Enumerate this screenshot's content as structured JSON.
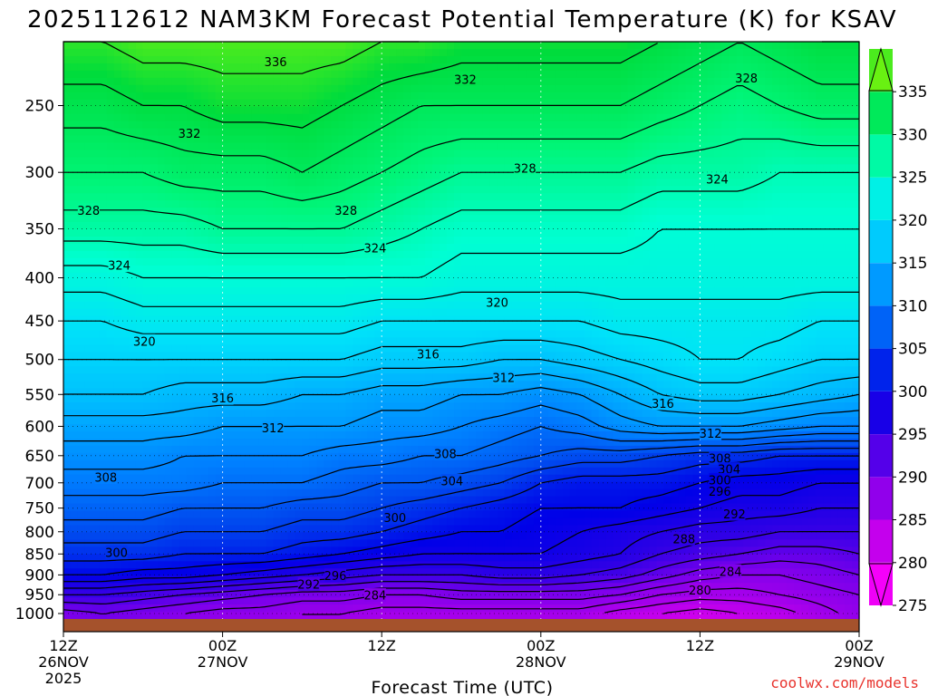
{
  "chart_data": {
    "type": "heatmap",
    "title": "2025112612 NAM3KM Forecast Potential Temperature (K) for KSAV",
    "xlabel": "Forecast Time (UTC)",
    "ylabel": "",
    "variable": "Potential Temperature (K)",
    "x_ticks": [
      {
        "hour": 0,
        "line1": "12Z",
        "line2": "26NOV",
        "line3": "2025"
      },
      {
        "hour": 12,
        "line1": "00Z",
        "line2": "27NOV",
        "line3": ""
      },
      {
        "hour": 24,
        "line1": "12Z",
        "line2": "",
        "line3": ""
      },
      {
        "hour": 36,
        "line1": "00Z",
        "line2": "28NOV",
        "line3": ""
      },
      {
        "hour": 48,
        "line1": "12Z",
        "line2": "",
        "line3": ""
      },
      {
        "hour": 60,
        "line1": "00Z",
        "line2": "29NOV",
        "line3": ""
      }
    ],
    "xlim": [
      0,
      60
    ],
    "y_ticks": [
      250,
      300,
      350,
      400,
      450,
      500,
      550,
      600,
      650,
      700,
      750,
      800,
      850,
      900,
      950,
      1000
    ],
    "ylim": [
      1015,
      210
    ],
    "colorbar": {
      "ticks": [
        335,
        330,
        325,
        320,
        315,
        310,
        305,
        300,
        295,
        290,
        285,
        280,
        275
      ],
      "min": 272.5,
      "max": 337.5
    },
    "times": [
      0,
      3,
      6,
      9,
      12,
      15,
      18,
      21,
      24,
      27,
      30,
      33,
      36,
      39,
      42,
      45,
      48,
      51,
      54,
      57,
      60
    ],
    "levels": [
      {
        "p": 1000,
        "theta": [
          287,
          288,
          287,
          286,
          285,
          285,
          284,
          284,
          283,
          283,
          283,
          283,
          283,
          283,
          281,
          280,
          279,
          280,
          281,
          283,
          285
        ]
      },
      {
        "p": 950,
        "theta": [
          292,
          292,
          291,
          290,
          289,
          288,
          287,
          287,
          286,
          286,
          287,
          287,
          287,
          287,
          286,
          284,
          283,
          283,
          284,
          285,
          286
        ]
      },
      {
        "p": 900,
        "theta": [
          298,
          298,
          297,
          297,
          296,
          295,
          294,
          293,
          292,
          292,
          292,
          293,
          293,
          292,
          291,
          289,
          287,
          286,
          286,
          287,
          288
        ]
      },
      {
        "p": 850,
        "theta": [
          301,
          301,
          301,
          300,
          300,
          300,
          299,
          298,
          297,
          296,
          296,
          296,
          296,
          295,
          294,
          292,
          291,
          290,
          289,
          289,
          290
        ]
      },
      {
        "p": 800,
        "theta": [
          303,
          303,
          303,
          302,
          302,
          302,
          301,
          301,
          300,
          299,
          298,
          298,
          297,
          296,
          295,
          294,
          293,
          293,
          292,
          292,
          292
        ]
      },
      {
        "p": 750,
        "theta": [
          305,
          305,
          305,
          304,
          304,
          304,
          303,
          303,
          302,
          301,
          300,
          299,
          298,
          298,
          298,
          297,
          296,
          295,
          295,
          294,
          294
        ]
      },
      {
        "p": 700,
        "theta": [
          307,
          307,
          307,
          307,
          306,
          306,
          306,
          305,
          304,
          304,
          303,
          302,
          300,
          299,
          299,
          299,
          298,
          297,
          297,
          296,
          296
        ]
      },
      {
        "p": 650,
        "theta": [
          309,
          309,
          309,
          308,
          308,
          308,
          308,
          307,
          307,
          306,
          306,
          305,
          304,
          303,
          303,
          302,
          301,
          301,
          300,
          300,
          300
        ]
      },
      {
        "p": 600,
        "theta": [
          311,
          311,
          311,
          311,
          310,
          310,
          310,
          310,
          309,
          309,
          308,
          307,
          306,
          307,
          309,
          310,
          310,
          310,
          309,
          308,
          308
        ]
      },
      {
        "p": 550,
        "theta": [
          314,
          314,
          314,
          313,
          313,
          313,
          312,
          312,
          311,
          311,
          310,
          310,
          309,
          310,
          312,
          314,
          315,
          315,
          314,
          313,
          312
        ]
      },
      {
        "p": 500,
        "theta": [
          316,
          316,
          316,
          316,
          316,
          316,
          316,
          316,
          315,
          315,
          315,
          314,
          314,
          315,
          316,
          317,
          318,
          318,
          317,
          316,
          316
        ]
      },
      {
        "p": 450,
        "theta": [
          318,
          318,
          319,
          319,
          319,
          319,
          319,
          319,
          318,
          318,
          318,
          318,
          318,
          318,
          319,
          319,
          319,
          319,
          319,
          318,
          318
        ]
      },
      {
        "p": 400,
        "theta": [
          321,
          321,
          322,
          322,
          322,
          322,
          322,
          322,
          322,
          322,
          321,
          321,
          321,
          321,
          321,
          321,
          321,
          321,
          321,
          321,
          321
        ]
      },
      {
        "p": 350,
        "theta": [
          325,
          325,
          325,
          325,
          326,
          326,
          326,
          326,
          325,
          324,
          323,
          323,
          323,
          323,
          323,
          322,
          322,
          322,
          322,
          322,
          322
        ]
      },
      {
        "p": 300,
        "theta": [
          328,
          328,
          328,
          329,
          329,
          329,
          330,
          329,
          328,
          327,
          326,
          326,
          326,
          326,
          326,
          325,
          325,
          325,
          324,
          324,
          324
        ]
      },
      {
        "p": 250,
        "theta": [
          331,
          331,
          332,
          332,
          333,
          333,
          333,
          332,
          331,
          330,
          330,
          330,
          330,
          330,
          330,
          329,
          328,
          327,
          328,
          329,
          329
        ]
      },
      {
        "p": 210,
        "theta": [
          334,
          334,
          335,
          335,
          335,
          335,
          335,
          335,
          334,
          334,
          333,
          333,
          333,
          333,
          333,
          332,
          331,
          330,
          331,
          332,
          332
        ]
      }
    ],
    "contour_labels": [
      {
        "text": "336",
        "t": 16.0,
        "p": 222
      },
      {
        "text": "332",
        "t": 30.3,
        "p": 233
      },
      {
        "text": "328",
        "t": 51.5,
        "p": 232
      },
      {
        "text": "332",
        "t": 9.5,
        "p": 270
      },
      {
        "text": "328",
        "t": 34.8,
        "p": 297
      },
      {
        "text": "324",
        "t": 49.3,
        "p": 306
      },
      {
        "text": "328",
        "t": 1.9,
        "p": 333
      },
      {
        "text": "328",
        "t": 21.3,
        "p": 333
      },
      {
        "text": "324",
        "t": 23.5,
        "p": 369
      },
      {
        "text": "324",
        "t": 4.2,
        "p": 387
      },
      {
        "text": "320",
        "t": 32.7,
        "p": 428
      },
      {
        "text": "320",
        "t": 6.1,
        "p": 476
      },
      {
        "text": "316",
        "t": 27.5,
        "p": 493
      },
      {
        "text": "312",
        "t": 33.2,
        "p": 526
      },
      {
        "text": "316",
        "t": 12.0,
        "p": 556
      },
      {
        "text": "316",
        "t": 45.2,
        "p": 564
      },
      {
        "text": "312",
        "t": 15.8,
        "p": 603
      },
      {
        "text": "312",
        "t": 48.8,
        "p": 612
      },
      {
        "text": "308",
        "t": 28.8,
        "p": 647
      },
      {
        "text": "308",
        "t": 49.5,
        "p": 655
      },
      {
        "text": "304",
        "t": 50.2,
        "p": 675
      },
      {
        "text": "300",
        "t": 49.5,
        "p": 695
      },
      {
        "text": "308",
        "t": 3.2,
        "p": 690
      },
      {
        "text": "304",
        "t": 29.3,
        "p": 697
      },
      {
        "text": "296",
        "t": 49.5,
        "p": 717
      },
      {
        "text": "292",
        "t": 50.6,
        "p": 763
      },
      {
        "text": "300",
        "t": 25.0,
        "p": 770
      },
      {
        "text": "288",
        "t": 46.8,
        "p": 816
      },
      {
        "text": "300",
        "t": 4.0,
        "p": 847
      },
      {
        "text": "284",
        "t": 50.3,
        "p": 892
      },
      {
        "text": "296",
        "t": 20.5,
        "p": 902
      },
      {
        "text": "292",
        "t": 18.5,
        "p": 924
      },
      {
        "text": "280",
        "t": 48.0,
        "p": 939
      },
      {
        "text": "284",
        "t": 23.5,
        "p": 952
      }
    ]
  },
  "branding": {
    "credit": "coolwx.com/models"
  }
}
